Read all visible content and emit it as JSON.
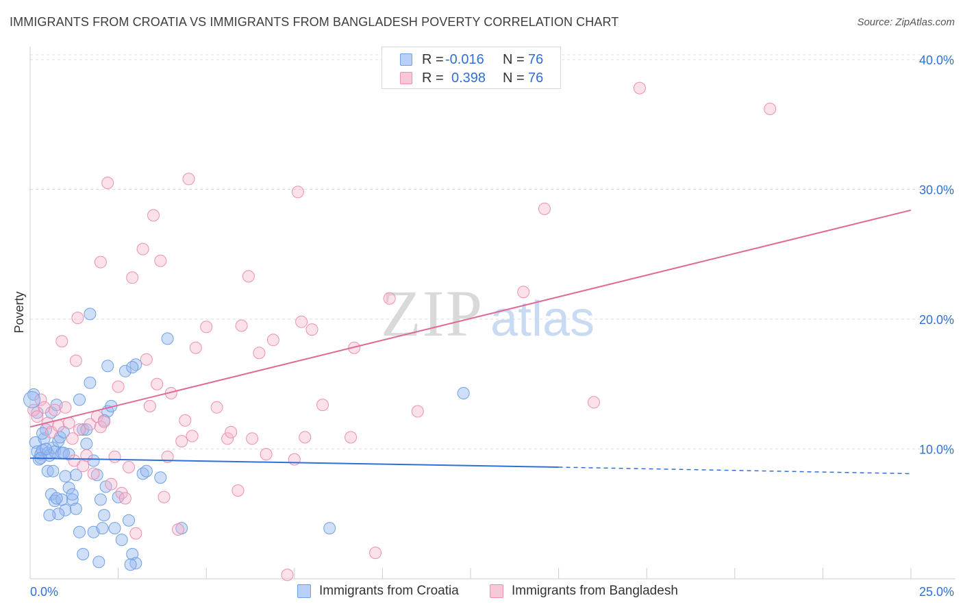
{
  "title": "IMMIGRANTS FROM CROATIA VS IMMIGRANTS FROM BANGLADESH POVERTY CORRELATION CHART",
  "source": "Source: ZipAtlas.com",
  "watermark": {
    "zip": "ZIP",
    "atlas": "atlas"
  },
  "legend": {
    "rows": [
      {
        "r_label": "R =",
        "r_value": "-0.016",
        "n_label": "N =",
        "n_value": "76",
        "color": "#6fa0e6",
        "fill": "#b8d0f5"
      },
      {
        "r_label": "R =",
        "r_value": "0.398",
        "n_label": "N =",
        "n_value": "76",
        "color": "#ee8fae",
        "fill": "#f9c8d8"
      }
    ]
  },
  "bottom_legend": [
    {
      "label": "Immigrants from Croatia",
      "color": "#6fa0e6",
      "fill": "#b8d0f5"
    },
    {
      "label": "Immigrants from Bangladesh",
      "color": "#ee8fae",
      "fill": "#f9c8d8"
    }
  ],
  "chart_data": {
    "type": "scatter",
    "title": "IMMIGRANTS FROM CROATIA VS IMMIGRANTS FROM BANGLADESH POVERTY CORRELATION CHART",
    "xlabel": "",
    "ylabel": "Poverty",
    "xlim": [
      0,
      25
    ],
    "ylim": [
      0,
      41
    ],
    "x_tick_labels": [
      "0.0%",
      "25.0%"
    ],
    "y_ticks": [
      10,
      20,
      30,
      40
    ],
    "y_tick_labels": [
      "10.0%",
      "20.0%",
      "30.0%",
      "40.0%"
    ],
    "grid": "horizontal dashed",
    "legend_position": "top-center",
    "colors": {
      "croatia": "#2f6fd6",
      "bangladesh": "#e06a96"
    },
    "series": [
      {
        "name": "Immigrants from Croatia",
        "points": [
          [
            0.1,
            14.2
          ],
          [
            0.15,
            10.5
          ],
          [
            0.2,
            9.8
          ],
          [
            0.25,
            9.2
          ],
          [
            0.3,
            9.6
          ],
          [
            0.35,
            9.9
          ],
          [
            0.4,
            10.8
          ],
          [
            0.45,
            11.5
          ],
          [
            0.5,
            9.7
          ],
          [
            0.55,
            9.5
          ],
          [
            0.6,
            12.8
          ],
          [
            0.65,
            10.1
          ],
          [
            0.7,
            9.8
          ],
          [
            0.75,
            13.4
          ],
          [
            0.8,
            10.6
          ],
          [
            0.85,
            10.9
          ],
          [
            0.9,
            9.7
          ],
          [
            0.95,
            11.3
          ],
          [
            0.3,
            9.3
          ],
          [
            0.45,
            10.0
          ],
          [
            1.0,
            5.3
          ],
          [
            1.1,
            7.0
          ],
          [
            1.2,
            6.1
          ],
          [
            1.3,
            5.4
          ],
          [
            1.4,
            13.8
          ],
          [
            1.5,
            11.5
          ],
          [
            1.6,
            10.4
          ],
          [
            1.7,
            15.1
          ],
          [
            1.8,
            9.1
          ],
          [
            1.9,
            8.0
          ],
          [
            2.0,
            6.1
          ],
          [
            2.1,
            4.9
          ],
          [
            2.15,
            7.1
          ],
          [
            2.2,
            12.9
          ],
          [
            2.3,
            13.3
          ],
          [
            2.4,
            3.9
          ],
          [
            2.5,
            6.3
          ],
          [
            2.6,
            3.0
          ],
          [
            2.7,
            16.0
          ],
          [
            2.8,
            4.5
          ],
          [
            1.4,
            3.6
          ],
          [
            1.5,
            1.9
          ],
          [
            1.8,
            3.6
          ],
          [
            1.95,
            1.3
          ],
          [
            2.05,
            3.9
          ],
          [
            2.9,
            1.9
          ],
          [
            3.0,
            1.2
          ],
          [
            2.85,
            1.1
          ],
          [
            1.1,
            9.6
          ],
          [
            1.3,
            8.0
          ],
          [
            0.5,
            8.3
          ],
          [
            0.6,
            6.5
          ],
          [
            0.7,
            6.0
          ],
          [
            0.8,
            5.0
          ],
          [
            0.9,
            6.1
          ],
          [
            1.0,
            7.9
          ],
          [
            1.2,
            6.5
          ],
          [
            0.55,
            4.9
          ],
          [
            0.65,
            8.3
          ],
          [
            0.75,
            6.2
          ],
          [
            1.7,
            20.4
          ],
          [
            3.0,
            16.5
          ],
          [
            2.2,
            16.4
          ],
          [
            2.1,
            12.2
          ],
          [
            2.9,
            16.3
          ],
          [
            3.2,
            8.1
          ],
          [
            3.3,
            8.3
          ],
          [
            3.7,
            7.8
          ],
          [
            3.9,
            18.5
          ],
          [
            4.3,
            3.9
          ],
          [
            8.5,
            3.9
          ],
          [
            12.3,
            14.3
          ],
          [
            1.6,
            11.5
          ],
          [
            0.2,
            12.8
          ],
          [
            0.35,
            11.2
          ],
          [
            0.95,
            9.7
          ]
        ]
      },
      {
        "name": "Immigrants from Bangladesh",
        "points": [
          [
            0.1,
            13.0
          ],
          [
            0.2,
            12.5
          ],
          [
            0.3,
            13.8
          ],
          [
            0.4,
            13.2
          ],
          [
            0.5,
            12.0
          ],
          [
            0.6,
            11.3
          ],
          [
            0.7,
            13.0
          ],
          [
            0.8,
            11.8
          ],
          [
            0.9,
            18.3
          ],
          [
            1.0,
            13.2
          ],
          [
            1.1,
            12.0
          ],
          [
            1.2,
            10.8
          ],
          [
            1.3,
            16.8
          ],
          [
            1.4,
            11.5
          ],
          [
            1.5,
            8.7
          ],
          [
            1.6,
            9.5
          ],
          [
            1.7,
            11.9
          ],
          [
            1.8,
            8.1
          ],
          [
            1.9,
            12.5
          ],
          [
            2.0,
            11.7
          ],
          [
            2.1,
            12.1
          ],
          [
            2.2,
            30.5
          ],
          [
            2.3,
            7.3
          ],
          [
            2.4,
            9.4
          ],
          [
            2.5,
            14.8
          ],
          [
            2.6,
            6.6
          ],
          [
            2.7,
            6.2
          ],
          [
            2.8,
            8.6
          ],
          [
            2.9,
            23.2
          ],
          [
            3.0,
            3.5
          ],
          [
            3.2,
            25.4
          ],
          [
            3.3,
            16.9
          ],
          [
            3.4,
            13.3
          ],
          [
            3.5,
            28.0
          ],
          [
            3.6,
            15.0
          ],
          [
            3.7,
            24.5
          ],
          [
            3.8,
            6.3
          ],
          [
            3.9,
            9.4
          ],
          [
            4.0,
            14.3
          ],
          [
            4.2,
            3.8
          ],
          [
            4.3,
            10.6
          ],
          [
            4.4,
            12.2
          ],
          [
            4.5,
            30.8
          ],
          [
            4.6,
            11.0
          ],
          [
            4.7,
            17.8
          ],
          [
            5.0,
            19.4
          ],
          [
            5.3,
            13.2
          ],
          [
            5.6,
            10.8
          ],
          [
            5.7,
            11.3
          ],
          [
            5.9,
            6.8
          ],
          [
            6.0,
            19.5
          ],
          [
            6.2,
            23.3
          ],
          [
            6.3,
            10.8
          ],
          [
            6.5,
            17.4
          ],
          [
            6.7,
            9.6
          ],
          [
            6.9,
            18.4
          ],
          [
            7.3,
            0.3
          ],
          [
            7.5,
            9.2
          ],
          [
            7.6,
            29.8
          ],
          [
            7.7,
            19.8
          ],
          [
            7.8,
            10.9
          ],
          [
            8.0,
            19.2
          ],
          [
            8.3,
            13.4
          ],
          [
            9.1,
            10.9
          ],
          [
            9.2,
            17.8
          ],
          [
            9.8,
            2.0
          ],
          [
            10.2,
            21.6
          ],
          [
            11.0,
            12.9
          ],
          [
            14.0,
            22.1
          ],
          [
            14.6,
            28.5
          ],
          [
            16.0,
            13.6
          ],
          [
            17.3,
            37.8
          ],
          [
            21.0,
            36.2
          ],
          [
            2.0,
            24.4
          ],
          [
            1.35,
            20.1
          ],
          [
            1.25,
            9.1
          ]
        ]
      }
    ],
    "trendlines": [
      {
        "series": "Immigrants from Croatia",
        "solid": [
          [
            0.0,
            9.3
          ],
          [
            15.0,
            8.6
          ]
        ],
        "dashed": [
          [
            15.0,
            8.6
          ],
          [
            25.0,
            8.1
          ]
        ]
      },
      {
        "series": "Immigrants from Bangladesh",
        "solid": [
          [
            0.0,
            11.7
          ],
          [
            25.0,
            28.4
          ]
        ]
      }
    ]
  }
}
